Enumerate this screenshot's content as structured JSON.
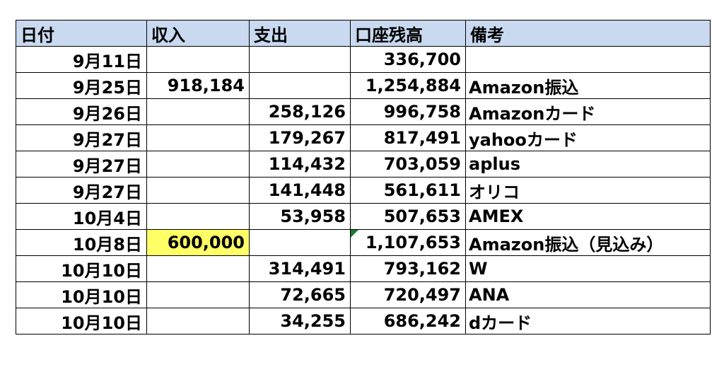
{
  "headers": [
    "日付",
    "収入",
    "支出",
    "口座残高",
    "備考"
  ],
  "rows": [
    {
      "date": "9月11日",
      "income": "",
      "expense": "",
      "balance": "336,700",
      "note": "",
      "highlight": false,
      "flag": false
    },
    {
      "date": "9月25日",
      "income": "918,184",
      "expense": "",
      "balance": "1,254,884",
      "note": "Amazon振込",
      "highlight": false,
      "flag": false
    },
    {
      "date": "9月26日",
      "income": "",
      "expense": "258,126",
      "balance": "996,758",
      "note": "Amazonカード",
      "highlight": false,
      "flag": false
    },
    {
      "date": "9月27日",
      "income": "",
      "expense": "179,267",
      "balance": "817,491",
      "note": "yahooカード",
      "highlight": false,
      "flag": false
    },
    {
      "date": "9月27日",
      "income": "",
      "expense": "114,432",
      "balance": "703,059",
      "note": "aplus",
      "highlight": false,
      "flag": false
    },
    {
      "date": "9月27日",
      "income": "",
      "expense": "141,448",
      "balance": "561,611",
      "note": "オリコ",
      "highlight": false,
      "flag": false
    },
    {
      "date": "10月4日",
      "income": "",
      "expense": "53,958",
      "balance": "507,653",
      "note": "AMEX",
      "highlight": false,
      "flag": false
    },
    {
      "date": "10月8日",
      "income": "600,000",
      "expense": "",
      "balance": "1,107,653",
      "note": "Amazon振込（見込み）",
      "highlight": true,
      "flag": true
    },
    {
      "date": "10月10日",
      "income": "",
      "expense": "314,491",
      "balance": "793,162",
      "note": "W",
      "highlight": false,
      "flag": false
    },
    {
      "date": "10月10日",
      "income": "",
      "expense": "72,665",
      "balance": "720,497",
      "note": "ANA",
      "highlight": false,
      "flag": false
    },
    {
      "date": "10月10日",
      "income": "",
      "expense": "34,255",
      "balance": "686,242",
      "note": "dカード",
      "highlight": false,
      "flag": false
    }
  ],
  "colors": {
    "header_bg": "#c9d9ef",
    "highlight_bg": "#ffff66",
    "comment_flag": "#1f7a35"
  }
}
